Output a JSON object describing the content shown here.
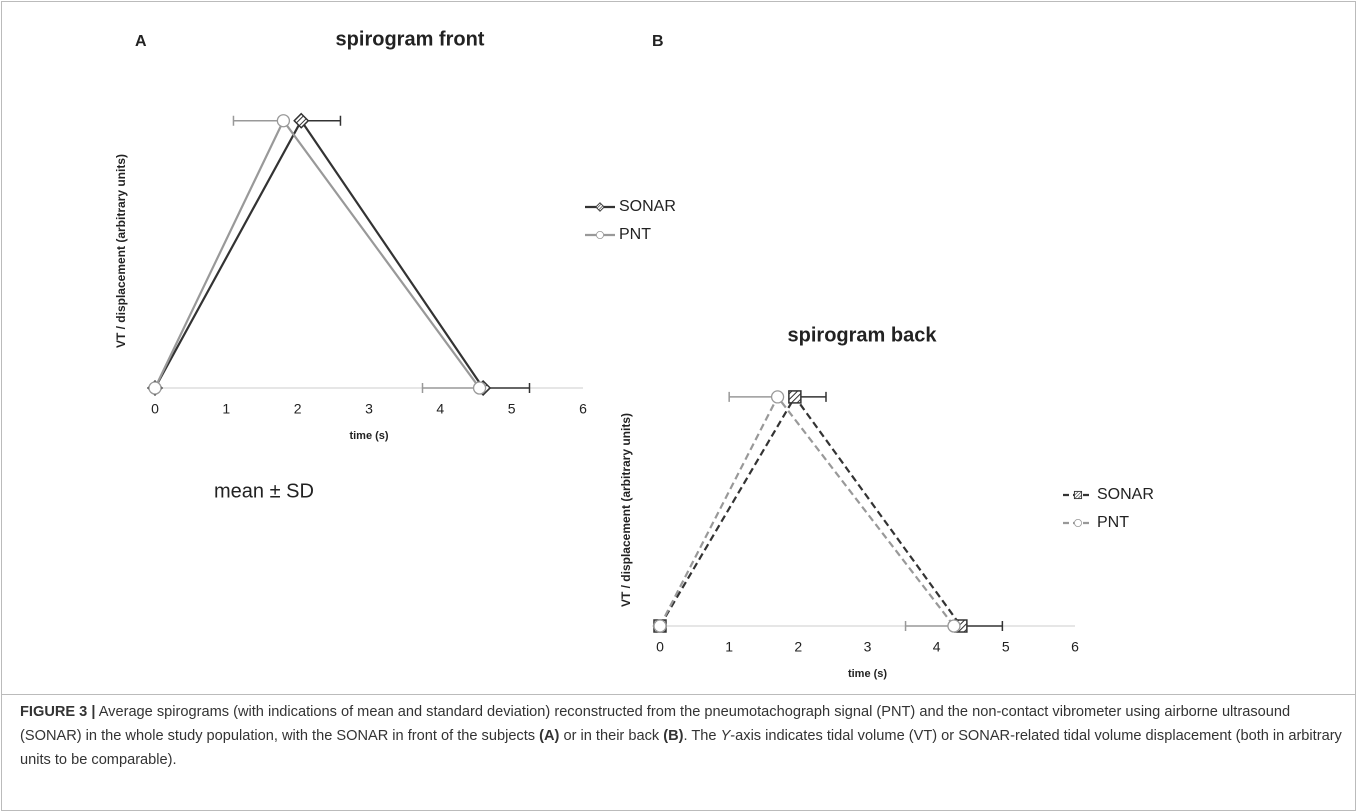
{
  "chart_data": [
    {
      "type": "line",
      "panel": "A",
      "title": "spirogram front",
      "y_label": "VT / displacement (arbitrary units)",
      "x_label": "time (s)",
      "xlim": [
        0,
        6
      ],
      "xticks": [
        0,
        1,
        2,
        3,
        4,
        5,
        6
      ],
      "ylim": [
        0,
        1.1
      ],
      "dashed": false,
      "series": [
        {
          "name": "SONAR",
          "color": "#333333",
          "marker": "diamond",
          "xerr_side": "right",
          "x": [
            0,
            2.05,
            4.6
          ],
          "values": [
            0,
            1,
            0
          ],
          "xerr": [
            null,
            0.55,
            0.65
          ]
        },
        {
          "name": "PNT",
          "color": "#999999",
          "marker": "circle",
          "xerr_side": "left",
          "x": [
            0,
            1.8,
            4.55
          ],
          "values": [
            0,
            1,
            0
          ],
          "xerr": [
            null,
            0.7,
            0.8
          ]
        }
      ]
    },
    {
      "type": "line",
      "panel": "B",
      "title": "spirogram back",
      "y_label": "VT / displacement (arbitrary units)",
      "x_label": "time (s)",
      "xlim": [
        0,
        6
      ],
      "xticks": [
        0,
        1,
        2,
        3,
        4,
        5,
        6
      ],
      "ylim": [
        0,
        1.1
      ],
      "dashed": true,
      "series": [
        {
          "name": "SONAR",
          "color": "#333333",
          "marker": "hatched-square",
          "xerr_side": "right",
          "x": [
            0,
            1.95,
            4.35
          ],
          "values": [
            0,
            1,
            0
          ],
          "xerr": [
            null,
            0.45,
            0.6
          ]
        },
        {
          "name": "PNT",
          "color": "#999999",
          "marker": "circle",
          "xerr_side": "left",
          "x": [
            0,
            1.7,
            4.25
          ],
          "values": [
            0,
            1,
            0
          ],
          "xerr": [
            null,
            0.7,
            0.7
          ]
        }
      ]
    }
  ],
  "annotation": "mean ± SD",
  "caption": [
    "FIGURE 3 |",
    " Average spirograms (with indications of mean and standard deviation) reconstructed from the pneumotachograph signal (PNT) and the non-contact vibrometer using airborne ultrasound (SONAR) in the whole study population, with the SONAR in front of the subjects ",
    "(A)",
    " or in their back ",
    "(B)",
    ". The ",
    "Y",
    "-axis indicates tidal volume (VT) or SONAR-related tidal volume displacement (both in arbitrary units to be comparable)."
  ]
}
